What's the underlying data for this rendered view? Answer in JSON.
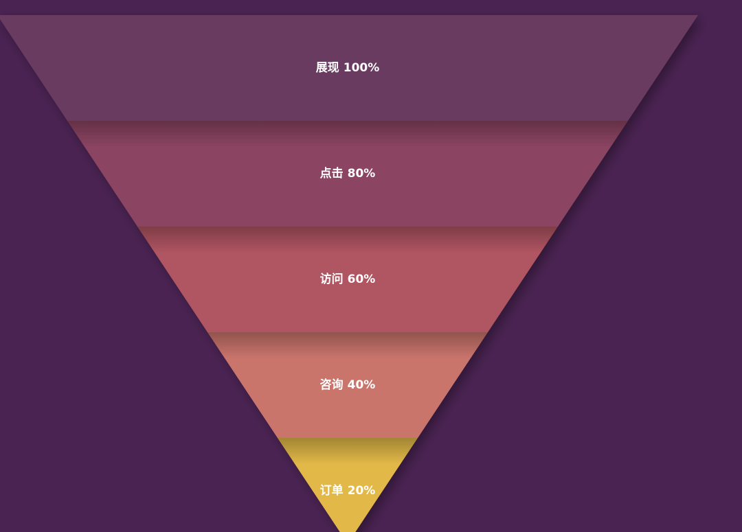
{
  "chart_data": {
    "type": "funnel",
    "categories": [
      "展现",
      "点击",
      "访问",
      "咨询",
      "订单"
    ],
    "values": [
      100,
      80,
      60,
      40,
      20
    ],
    "value_labels": [
      "100%",
      "80%",
      "60%",
      "40%",
      "20%"
    ],
    "colors": [
      "#6b3a60",
      "#8b4462",
      "#b05562",
      "#c9756c",
      "#e2b948"
    ]
  }
}
